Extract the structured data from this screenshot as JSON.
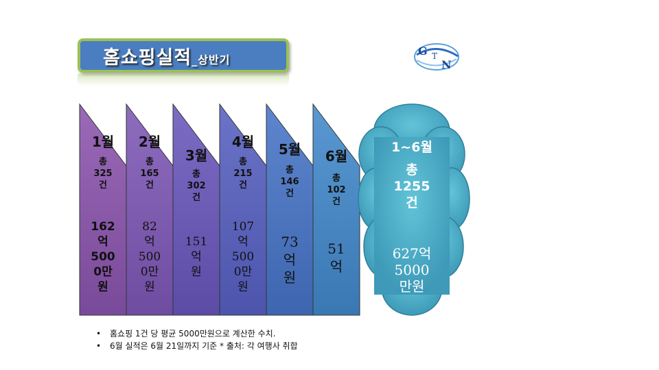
{
  "title": {
    "main": "홈쇼핑실적",
    "separator": "_",
    "sub": "상반기"
  },
  "logo": {
    "letters": [
      "G",
      "T",
      "N"
    ]
  },
  "months": [
    {
      "label": "1월",
      "total": "총\n325\n건",
      "amount": "162\n억\n500\n0만\n원",
      "color": "#8a5aa8"
    },
    {
      "label": "2월",
      "total": "총\n165\n건",
      "amount": "82\n억\n500\n0만\n원",
      "color": "#7e5bb0"
    },
    {
      "label": "3월",
      "total": "총\n302\n건",
      "amount": "151\n억\n원",
      "color": "#6e5bb8"
    },
    {
      "label": "4월",
      "total": "총\n215\n건",
      "amount": "107\n억\n500\n0만\n원",
      "color": "#5e63bd"
    },
    {
      "label": "5월",
      "total": "총\n146\n건",
      "amount": "73\n억\n원",
      "color": "#4f74c2"
    },
    {
      "label": "6월",
      "total": "총\n102\n건",
      "amount": "51\n억",
      "color": "#4a86c8"
    }
  ],
  "summary": {
    "label": "1~6월",
    "total": "총\n1255\n건",
    "amount": "627억\n5000\n만원",
    "color": "#4eafc6"
  },
  "notes": [
    "홈쇼핑 1건 당 평균 5000만원으로 계산한 수치.",
    "6월 실적은 6월 21일까지 기준 * 출처: 각 여행사 취합"
  ]
}
